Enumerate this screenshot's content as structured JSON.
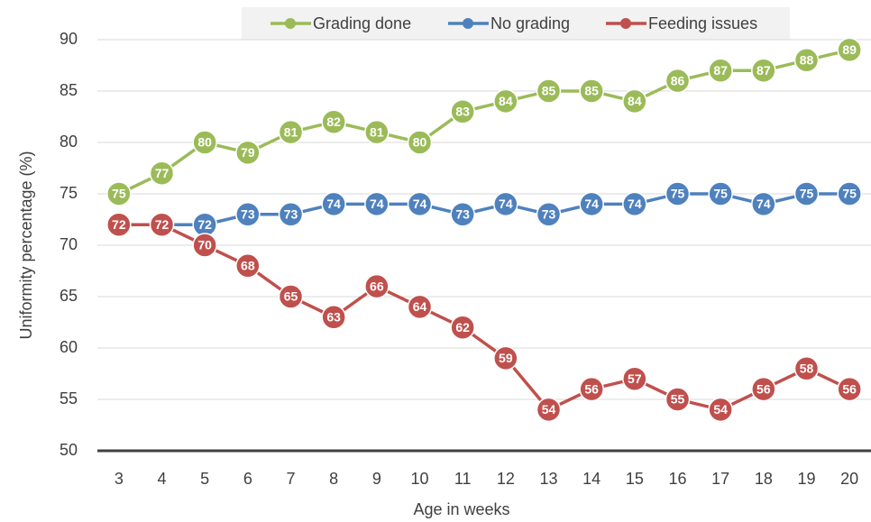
{
  "chart_data": {
    "type": "line",
    "x_label": "Age in weeks",
    "y_label": "Uniformity percentage (%)",
    "categories": [
      "3",
      "4",
      "5",
      "6",
      "7",
      "8",
      "9",
      "10",
      "11",
      "12",
      "13",
      "14",
      "15",
      "16",
      "17",
      "18",
      "19",
      "20"
    ],
    "series": [
      {
        "name": "Grading done",
        "color": "#9bbb59",
        "values": [
          75,
          77,
          80,
          79,
          81,
          82,
          81,
          80,
          83,
          84,
          85,
          85,
          84,
          86,
          87,
          87,
          88,
          89
        ]
      },
      {
        "name": "No grading",
        "color": "#4f81bd",
        "values": [
          72,
          72,
          72,
          73,
          73,
          74,
          74,
          74,
          73,
          74,
          73,
          74,
          74,
          75,
          75,
          74,
          75,
          75
        ]
      },
      {
        "name": "Feeding issues",
        "color": "#c0504d",
        "values": [
          72,
          72,
          70,
          68,
          65,
          63,
          66,
          64,
          62,
          59,
          54,
          56,
          57,
          55,
          54,
          56,
          58,
          56
        ]
      }
    ],
    "ylim": [
      50,
      90
    ],
    "yticks": [
      50,
      55,
      60,
      65,
      70,
      75,
      80,
      85,
      90
    ],
    "grid": true,
    "legend": "top"
  }
}
